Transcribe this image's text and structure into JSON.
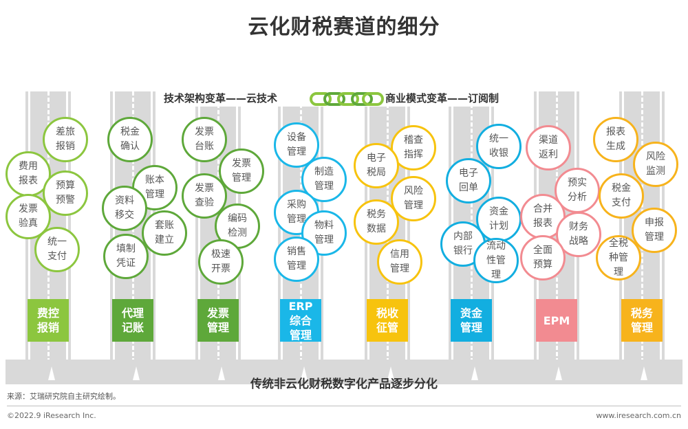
{
  "title": "云化财税赛道的细分",
  "banner": {
    "left": "技术架构变革——云技术",
    "right": "商业模式变革——订阅制"
  },
  "bottom_label": "传统非云化财税数字化产品逐步分化",
  "colors": {
    "road": "#d9d9d9",
    "track1": "#8cc63f",
    "track2": "#5ea83a",
    "track3": "#5ea83a",
    "track4": "#1ab7e8",
    "track5": "#f7c30e",
    "track6": "#12aee0",
    "track7": "#f28b91",
    "track8": "#f7b31c"
  },
  "tracks": [
    {
      "label": "费控\n报销",
      "color": "#8cc63f",
      "items": [
        "差旅\n报销",
        "费用\n报表",
        "预算\n预警",
        "发票\n验真",
        "统一\n支付"
      ]
    },
    {
      "label": "代理\n记账",
      "color": "#5ea83a",
      "items": [
        "税金\n确认",
        "账本\n管理",
        "资料\n移交",
        "套账\n建立",
        "填制\n凭证"
      ]
    },
    {
      "label": "发票\n管理",
      "color": "#5ea83a",
      "items": [
        "发票\n台账",
        "发票\n管理",
        "发票\n查验",
        "编码\n检测",
        "极速\n开票"
      ]
    },
    {
      "label": "ERP\n综合\n管理",
      "color": "#1ab7e8",
      "items": [
        "设备\n管理",
        "制造\n管理",
        "采购\n管理",
        "物料\n管理",
        "销售\n管理"
      ]
    },
    {
      "label": "税收\n征管",
      "color": "#f7c30e",
      "items": [
        "稽查\n指挥",
        "电子\n税局",
        "风险\n管理",
        "税务\n数据",
        "信用\n管理"
      ]
    },
    {
      "label": "资金\n管理",
      "color": "#12aee0",
      "items": [
        "统一\n收银",
        "电子\n回单",
        "资金\n计划",
        "内部\n银行",
        "流动\n性管\n理"
      ]
    },
    {
      "label": "EPM",
      "color": "#f28b91",
      "items": [
        "渠道\n返利",
        "预实\n分析",
        "合并\n报表",
        "财务\n战略",
        "全面\n预算"
      ]
    },
    {
      "label": "税务\n管理",
      "color": "#f7b31c",
      "items": [
        "报表\n生成",
        "风险\n监测",
        "税金\n支付",
        "申报\n管理",
        "全税\n种管\n理"
      ]
    }
  ],
  "source": "来源：艾瑞研究院自主研究绘制。",
  "footer": {
    "copyright": "©2022.9 iResearch Inc.",
    "url": "www.iresearch.com.cn"
  }
}
